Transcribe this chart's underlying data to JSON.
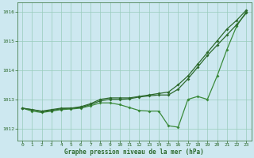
{
  "background_color": "#cde8f0",
  "grid_color": "#99ccbb",
  "line_color1": "#2d6a2d",
  "line_color2": "#2d6a2d",
  "line_color3": "#3a8a3a",
  "xlabel": "Graphe pression niveau de la mer (hPa)",
  "xlim": [
    -0.5,
    23.5
  ],
  "ylim": [
    1011.6,
    1016.3
  ],
  "yticks": [
    1012,
    1013,
    1014,
    1015,
    1016
  ],
  "xticks": [
    0,
    1,
    2,
    3,
    4,
    5,
    6,
    7,
    8,
    9,
    10,
    11,
    12,
    13,
    14,
    15,
    16,
    17,
    18,
    19,
    20,
    21,
    22,
    23
  ],
  "series1_x": [
    0,
    1,
    2,
    3,
    4,
    5,
    6,
    7,
    8,
    9,
    10,
    11,
    12,
    13,
    14,
    15,
    16,
    17,
    18,
    19,
    20,
    21,
    22,
    23
  ],
  "series1_y": [
    1012.7,
    1012.65,
    1012.6,
    1012.65,
    1012.7,
    1012.7,
    1012.75,
    1012.85,
    1013.0,
    1013.05,
    1013.05,
    1013.05,
    1013.1,
    1013.15,
    1013.2,
    1013.25,
    1013.5,
    1013.8,
    1014.2,
    1014.6,
    1015.0,
    1015.4,
    1015.7,
    1016.05
  ],
  "series2_x": [
    0,
    1,
    2,
    3,
    4,
    5,
    6,
    7,
    8,
    9,
    10,
    11,
    12,
    13,
    14,
    15,
    16,
    17,
    18,
    19,
    20,
    21,
    22,
    23
  ],
  "series2_y": [
    1012.7,
    1012.65,
    1012.58,
    1012.62,
    1012.68,
    1012.7,
    1012.72,
    1012.82,
    1012.95,
    1013.0,
    1013.0,
    1013.02,
    1013.08,
    1013.12,
    1013.15,
    1013.15,
    1013.35,
    1013.7,
    1014.1,
    1014.5,
    1014.85,
    1015.2,
    1015.55,
    1015.95
  ],
  "series3_x": [
    0,
    1,
    2,
    3,
    4,
    5,
    6,
    7,
    8,
    9,
    10,
    11,
    12,
    13,
    14,
    15,
    16,
    17,
    18,
    19,
    20,
    21,
    22,
    23
  ],
  "series3_y": [
    1012.7,
    1012.6,
    1012.55,
    1012.6,
    1012.65,
    1012.67,
    1012.7,
    1012.78,
    1012.88,
    1012.88,
    1012.82,
    1012.72,
    1012.62,
    1012.6,
    1012.6,
    1012.1,
    1012.05,
    1013.0,
    1013.1,
    1013.0,
    1013.8,
    1014.7,
    1015.5,
    1016.0
  ]
}
